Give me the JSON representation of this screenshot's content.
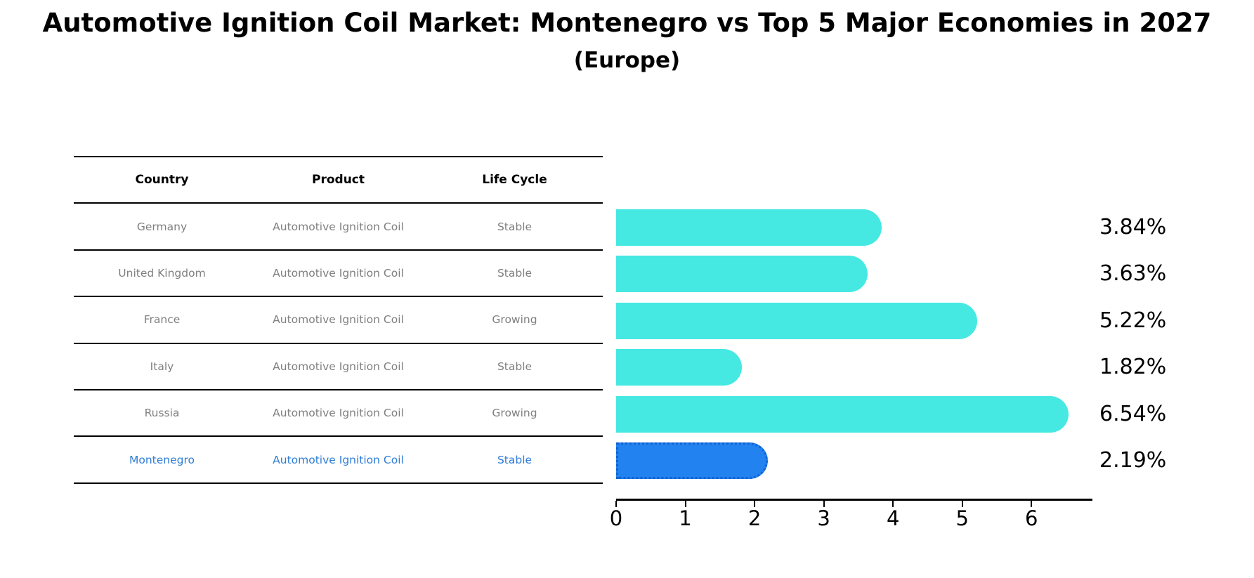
{
  "title": "Automotive Ignition Coil Market: Montenegro vs Top 5 Major Economies in 2027",
  "subtitle": "(Europe)",
  "table": {
    "headers": [
      "Country",
      "Product",
      "Life Cycle"
    ],
    "rows": [
      {
        "country": "Germany",
        "product": "Automotive Ignition Coil",
        "life_cycle": "Stable",
        "highlight": false
      },
      {
        "country": "United Kingdom",
        "product": "Automotive Ignition Coil",
        "life_cycle": "Stable",
        "highlight": false
      },
      {
        "country": "France",
        "product": "Automotive Ignition Coil",
        "life_cycle": "Growing",
        "highlight": false
      },
      {
        "country": "Italy",
        "product": "Automotive Ignition Coil",
        "life_cycle": "Stable",
        "highlight": false
      },
      {
        "country": "Russia",
        "product": "Automotive Ignition Coil",
        "life_cycle": "Growing",
        "highlight": false
      },
      {
        "country": "Montenegro",
        "product": "Automotive Ignition Coil",
        "life_cycle": "Stable",
        "highlight": true
      }
    ]
  },
  "chart_data": {
    "type": "bar",
    "orientation": "horizontal",
    "title": "Automotive Ignition Coil Market: Montenegro vs Top 5 Major Economies in 2027",
    "subtitle": "(Europe)",
    "categories": [
      "Germany",
      "United Kingdom",
      "France",
      "Italy",
      "Russia",
      "Montenegro"
    ],
    "values": [
      3.84,
      3.63,
      5.22,
      1.82,
      6.54,
      2.19
    ],
    "value_labels": [
      "3.84%",
      "3.63%",
      "5.22%",
      "1.82%",
      "6.54%",
      "2.19%"
    ],
    "xlabel": "",
    "ylabel": "",
    "xlim": [
      0,
      6.88
    ],
    "xticks": [
      0,
      1,
      2,
      3,
      4,
      5,
      6
    ],
    "grid": false,
    "legend": null,
    "bar_color": "#46e8e2",
    "highlight_index": 5,
    "highlight_color": "#2182f0",
    "highlight_edge_color": "#1261d4",
    "highlight_edge_style": "dotted"
  },
  "colors": {
    "background": "#ffffff",
    "title_text": "#000000",
    "table_text": "#7f7f7f",
    "table_header_text": "#000000",
    "highlight_row_text": "#2e7cd6",
    "axis": "#000000"
  }
}
